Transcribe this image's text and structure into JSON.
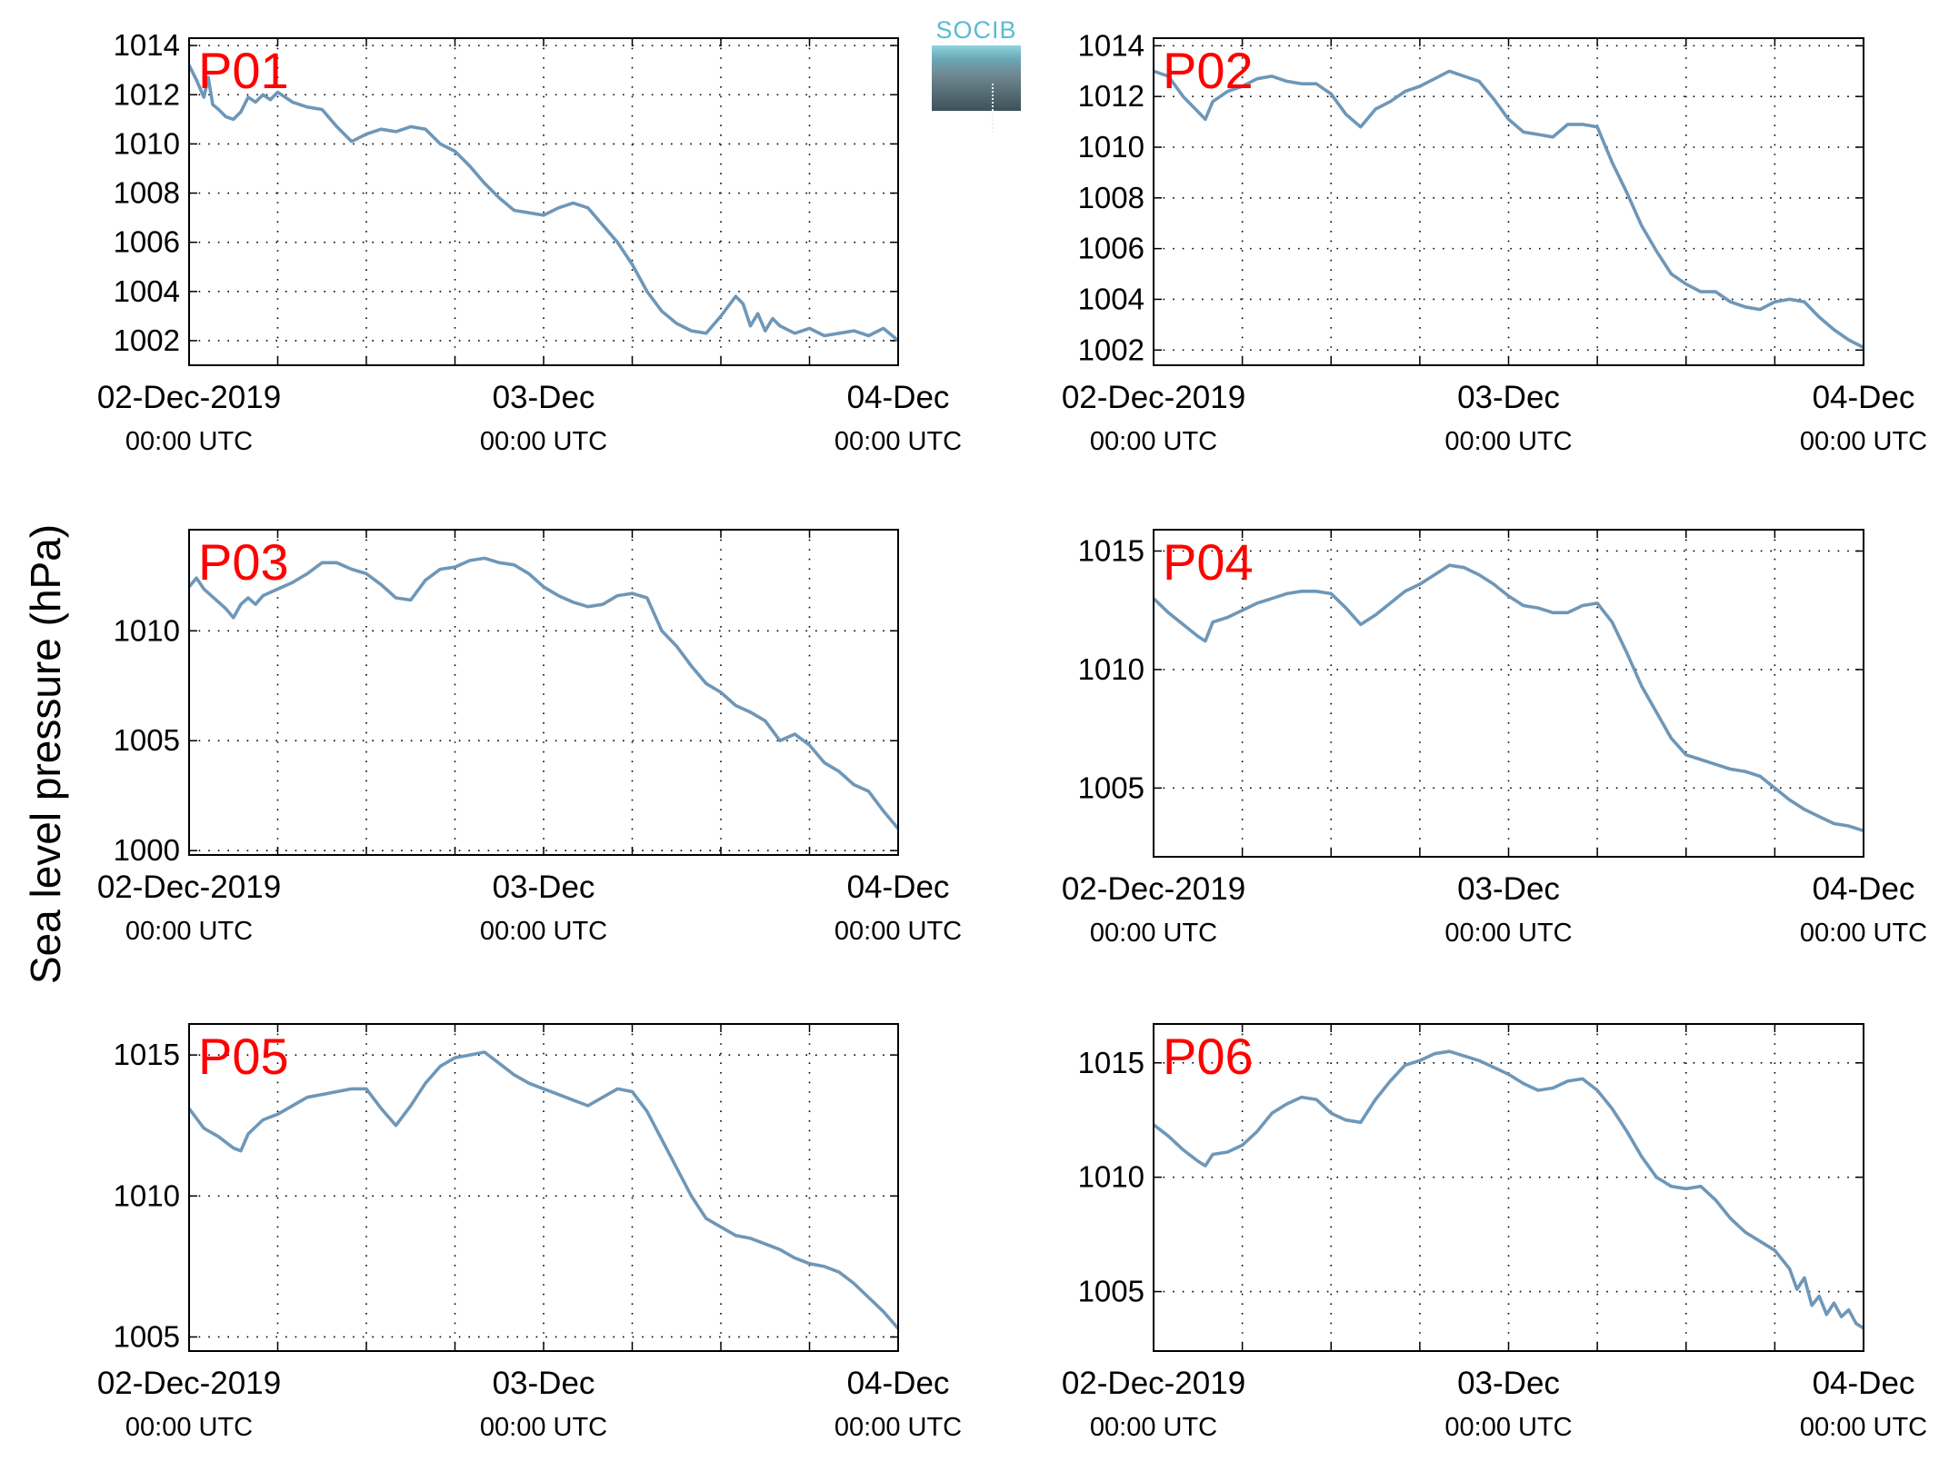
{
  "figure": {
    "ylabel": "Sea level pressure (hPa)",
    "logo_text": "SOCIB"
  },
  "colors": {
    "line": "#6e97b8",
    "panel_label": "#ff0000",
    "axes": "#000000",
    "grid": "#000000"
  },
  "chart_data": [
    {
      "type": "line",
      "title": "P01",
      "x_ticks": [
        {
          "top": "02-Dec-2019",
          "bottom": "00:00 UTC"
        },
        {
          "top": "03-Dec",
          "bottom": "00:00 UTC"
        },
        {
          "top": "04-Dec",
          "bottom": "00:00 UTC"
        }
      ],
      "xlim": [
        0,
        48
      ],
      "ylim": [
        1001,
        1014.3
      ],
      "yticks": [
        1002,
        1004,
        1006,
        1008,
        1010,
        1012,
        1014
      ],
      "grid": true,
      "series": [
        {
          "x": [
            0,
            0.5,
            1,
            1.3,
            1.6,
            2,
            2.5,
            3,
            3.5,
            4,
            4.5,
            5,
            5.5,
            6,
            7,
            8,
            9,
            10,
            11,
            12,
            13,
            14,
            15,
            16,
            17,
            18,
            19,
            20,
            21,
            22,
            23,
            24,
            25,
            26,
            27,
            28,
            29,
            30,
            31,
            32,
            33,
            34,
            35,
            36,
            37,
            37.5,
            38,
            38.5,
            39,
            39.5,
            40,
            41,
            42,
            43,
            44,
            45,
            46,
            47,
            48
          ],
          "y": [
            1013.2,
            1012.6,
            1011.9,
            1012.7,
            1011.6,
            1011.4,
            1011.1,
            1011.0,
            1011.3,
            1011.9,
            1011.7,
            1012.0,
            1011.8,
            1012.1,
            1011.7,
            1011.5,
            1011.4,
            1010.7,
            1010.1,
            1010.4,
            1010.6,
            1010.5,
            1010.7,
            1010.6,
            1010.0,
            1009.7,
            1009.1,
            1008.4,
            1007.8,
            1007.3,
            1007.2,
            1007.1,
            1007.4,
            1007.6,
            1007.4,
            1006.7,
            1006.0,
            1005.1,
            1004.0,
            1003.2,
            1002.7,
            1002.4,
            1002.3,
            1003.0,
            1003.8,
            1003.5,
            1002.6,
            1003.1,
            1002.4,
            1002.9,
            1002.6,
            1002.3,
            1002.5,
            1002.2,
            1002.3,
            1002.4,
            1002.2,
            1002.5,
            1002.0
          ]
        }
      ]
    },
    {
      "type": "line",
      "title": "P02",
      "x_ticks": [
        {
          "top": "02-Dec-2019",
          "bottom": "00:00 UTC"
        },
        {
          "top": "03-Dec",
          "bottom": "00:00 UTC"
        },
        {
          "top": "04-Dec",
          "bottom": "00:00 UTC"
        }
      ],
      "xlim": [
        0,
        48
      ],
      "ylim": [
        1001.4,
        1014.3
      ],
      "yticks": [
        1002,
        1004,
        1006,
        1008,
        1010,
        1012,
        1014
      ],
      "grid": true,
      "series": [
        {
          "x": [
            0,
            1,
            2,
            3,
            3.5,
            4,
            5,
            6,
            7,
            8,
            9,
            10,
            11,
            12,
            13,
            14,
            15,
            16,
            17,
            18,
            19,
            20,
            21,
            22,
            23,
            24,
            25,
            26,
            27,
            28,
            29,
            30,
            31,
            32,
            33,
            34,
            35,
            36,
            37,
            38,
            39,
            40,
            41,
            42,
            43,
            44,
            45,
            46,
            47,
            48
          ],
          "y": [
            1013.0,
            1012.8,
            1012.0,
            1011.4,
            1011.1,
            1011.8,
            1012.2,
            1012.4,
            1012.7,
            1012.8,
            1012.6,
            1012.5,
            1012.5,
            1012.1,
            1011.3,
            1010.8,
            1011.5,
            1011.8,
            1012.2,
            1012.4,
            1012.7,
            1013.0,
            1012.8,
            1012.6,
            1011.9,
            1011.1,
            1010.6,
            1010.5,
            1010.4,
            1010.9,
            1010.9,
            1010.8,
            1009.4,
            1008.2,
            1006.9,
            1005.9,
            1005.0,
            1004.6,
            1004.3,
            1004.3,
            1003.9,
            1003.7,
            1003.6,
            1003.9,
            1004.0,
            1003.9,
            1003.3,
            1002.8,
            1002.4,
            1002.1
          ]
        }
      ]
    },
    {
      "type": "line",
      "title": "P03",
      "x_ticks": [
        {
          "top": "02-Dec-2019",
          "bottom": "00:00 UTC"
        },
        {
          "top": "03-Dec",
          "bottom": "00:00 UTC"
        },
        {
          "top": "04-Dec",
          "bottom": "00:00 UTC"
        }
      ],
      "xlim": [
        0,
        48
      ],
      "ylim": [
        999.8,
        1014.6
      ],
      "yticks": [
        1000,
        1005,
        1010
      ],
      "grid": true,
      "series": [
        {
          "x": [
            0,
            0.5,
            1,
            1.5,
            2,
            2.5,
            3,
            3.5,
            4,
            4.5,
            5,
            6,
            7,
            8,
            9,
            10,
            11,
            12,
            13,
            14,
            15,
            16,
            17,
            18,
            19,
            20,
            21,
            22,
            23,
            24,
            25,
            26,
            27,
            28,
            29,
            30,
            31,
            32,
            33,
            34,
            35,
            36,
            37,
            38,
            39,
            40,
            41,
            42,
            43,
            44,
            45,
            46,
            47,
            48
          ],
          "y": [
            1012.0,
            1012.4,
            1011.9,
            1011.6,
            1011.3,
            1011.0,
            1010.6,
            1011.2,
            1011.5,
            1011.2,
            1011.6,
            1011.9,
            1012.2,
            1012.6,
            1013.1,
            1013.1,
            1012.8,
            1012.6,
            1012.1,
            1011.5,
            1011.4,
            1012.3,
            1012.8,
            1012.9,
            1013.2,
            1013.3,
            1013.1,
            1013.0,
            1012.6,
            1012.0,
            1011.6,
            1011.3,
            1011.1,
            1011.2,
            1011.6,
            1011.7,
            1011.5,
            1010.0,
            1009.3,
            1008.4,
            1007.6,
            1007.2,
            1006.6,
            1006.3,
            1005.9,
            1005.0,
            1005.3,
            1004.8,
            1004.0,
            1003.6,
            1003.0,
            1002.7,
            1001.8,
            1001.0
          ]
        }
      ]
    },
    {
      "type": "line",
      "title": "P04",
      "x_ticks": [
        {
          "top": "02-Dec-2019",
          "bottom": "00:00 UTC"
        },
        {
          "top": "03-Dec",
          "bottom": "00:00 UTC"
        },
        {
          "top": "04-Dec",
          "bottom": "00:00 UTC"
        }
      ],
      "xlim": [
        0,
        48
      ],
      "ylim": [
        1002.1,
        1015.9
      ],
      "yticks": [
        1005,
        1010,
        1015
      ],
      "grid": true,
      "series": [
        {
          "x": [
            0,
            1,
            2,
            3,
            3.5,
            4,
            5,
            6,
            7,
            8,
            9,
            10,
            11,
            12,
            13,
            14,
            15,
            16,
            17,
            18,
            19,
            20,
            21,
            22,
            23,
            24,
            25,
            26,
            27,
            28,
            29,
            30,
            31,
            32,
            33,
            34,
            35,
            36,
            37,
            38,
            39,
            40,
            41,
            42,
            43,
            44,
            45,
            46,
            47,
            48
          ],
          "y": [
            1013.0,
            1012.4,
            1011.9,
            1011.4,
            1011.2,
            1012.0,
            1012.2,
            1012.5,
            1012.8,
            1013.0,
            1013.2,
            1013.3,
            1013.3,
            1013.2,
            1012.6,
            1011.9,
            1012.3,
            1012.8,
            1013.3,
            1013.6,
            1014.0,
            1014.4,
            1014.3,
            1014.0,
            1013.6,
            1013.1,
            1012.7,
            1012.6,
            1012.4,
            1012.4,
            1012.7,
            1012.8,
            1012.0,
            1010.7,
            1009.3,
            1008.2,
            1007.1,
            1006.4,
            1006.2,
            1006.0,
            1005.8,
            1005.7,
            1005.5,
            1005.0,
            1004.5,
            1004.1,
            1003.8,
            1003.5,
            1003.4,
            1003.2
          ]
        }
      ]
    },
    {
      "type": "line",
      "title": "P05",
      "x_ticks": [
        {
          "top": "02-Dec-2019",
          "bottom": "00:00 UTC"
        },
        {
          "top": "03-Dec",
          "bottom": "00:00 UTC"
        },
        {
          "top": "04-Dec",
          "bottom": "00:00 UTC"
        }
      ],
      "xlim": [
        0,
        48
      ],
      "ylim": [
        1004.5,
        1016.1
      ],
      "yticks": [
        1005,
        1010,
        1015
      ],
      "grid": true,
      "series": [
        {
          "x": [
            0,
            1,
            2,
            3,
            3.5,
            4,
            5,
            6,
            7,
            8,
            9,
            10,
            11,
            12,
            13,
            14,
            15,
            16,
            17,
            18,
            19,
            20,
            21,
            22,
            23,
            24,
            25,
            26,
            27,
            28,
            29,
            30,
            31,
            32,
            33,
            34,
            35,
            36,
            37,
            38,
            39,
            40,
            41,
            42,
            43,
            44,
            45,
            46,
            47,
            48
          ],
          "y": [
            1013.1,
            1012.4,
            1012.1,
            1011.7,
            1011.6,
            1012.2,
            1012.7,
            1012.9,
            1013.2,
            1013.5,
            1013.6,
            1013.7,
            1013.8,
            1013.8,
            1013.1,
            1012.5,
            1013.2,
            1014.0,
            1014.6,
            1014.9,
            1015.0,
            1015.1,
            1014.7,
            1014.3,
            1014.0,
            1013.8,
            1013.6,
            1013.4,
            1013.2,
            1013.5,
            1013.8,
            1013.7,
            1013.0,
            1012.0,
            1011.0,
            1010.0,
            1009.2,
            1008.9,
            1008.6,
            1008.5,
            1008.3,
            1008.1,
            1007.8,
            1007.6,
            1007.5,
            1007.3,
            1006.9,
            1006.4,
            1005.9,
            1005.3
          ]
        }
      ]
    },
    {
      "type": "line",
      "title": "P06",
      "x_ticks": [
        {
          "top": "02-Dec-2019",
          "bottom": "00:00 UTC"
        },
        {
          "top": "03-Dec",
          "bottom": "00:00 UTC"
        },
        {
          "top": "04-Dec",
          "bottom": "00:00 UTC"
        }
      ],
      "xlim": [
        0,
        48
      ],
      "ylim": [
        1002.4,
        1016.7
      ],
      "yticks": [
        1005,
        1010,
        1015
      ],
      "grid": true,
      "series": [
        {
          "x": [
            0,
            1,
            2,
            3,
            3.5,
            4,
            5,
            6,
            7,
            8,
            9,
            10,
            11,
            12,
            13,
            14,
            15,
            16,
            17,
            18,
            19,
            20,
            21,
            22,
            23,
            24,
            25,
            26,
            27,
            28,
            29,
            30,
            31,
            32,
            33,
            34,
            35,
            36,
            37,
            38,
            39,
            40,
            41,
            42,
            43,
            43.5,
            44,
            44.5,
            45,
            45.5,
            46,
            46.5,
            47,
            47.5,
            48
          ],
          "y": [
            1012.3,
            1011.8,
            1011.2,
            1010.7,
            1010.5,
            1011.0,
            1011.1,
            1011.4,
            1012.0,
            1012.8,
            1013.2,
            1013.5,
            1013.4,
            1012.8,
            1012.5,
            1012.4,
            1013.4,
            1014.2,
            1014.9,
            1015.1,
            1015.4,
            1015.5,
            1015.3,
            1015.1,
            1014.8,
            1014.5,
            1014.1,
            1013.8,
            1013.9,
            1014.2,
            1014.3,
            1013.8,
            1013.0,
            1012.0,
            1010.9,
            1010.0,
            1009.6,
            1009.5,
            1009.6,
            1009.0,
            1008.2,
            1007.6,
            1007.2,
            1006.8,
            1006.0,
            1005.1,
            1005.6,
            1004.4,
            1004.8,
            1004.0,
            1004.5,
            1003.9,
            1004.2,
            1003.6,
            1003.4
          ]
        }
      ]
    }
  ]
}
